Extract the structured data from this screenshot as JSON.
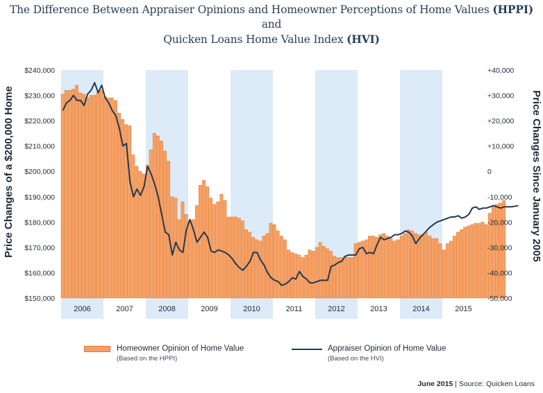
{
  "title": {
    "line1_prefix": "The Difference Between Appraiser Opinions and Homeowner Perceptions of Home Values",
    "line1_acronym": "(HPPI)",
    "line2": "and",
    "line3_prefix": "Quicken Loans Home Value Index",
    "line3_acronym": "(HVI)"
  },
  "legend": {
    "bar_label": "Homeowner Opinion of Home Value",
    "bar_sub": "(Based on the HPPI)",
    "line_label": "Appraiser Opinion of Home Value",
    "line_sub": "(Based on the HVI)"
  },
  "source": {
    "date": "June 2015",
    "separator": "|",
    "text": "Source: Quicken Loans"
  },
  "colors": {
    "bar": "#f7a062",
    "bar_edge": "#e07a35",
    "line": "#22384f",
    "band": "#dcebf7",
    "title": "#2a3f57"
  },
  "chart_data": {
    "type": "bar",
    "left_axis": {
      "label": "Price Changes of a $200,000 Home",
      "range": [
        150000,
        240000
      ],
      "ticks": [
        "$150,000",
        "$160,000",
        "$170,000",
        "$180,000",
        "$190,000",
        "$200,000",
        "$210,000",
        "$220,000",
        "$230,000",
        "$240,000"
      ]
    },
    "right_axis": {
      "label": "Price Changes Since January 2005",
      "range": [
        -50000,
        40000
      ],
      "ticks": [
        "-50,000",
        "-40,000",
        "-30,000",
        "-20,000",
        "-10,000",
        "0",
        "+10,000",
        "+20,000",
        "+30,000",
        "+40,000"
      ]
    },
    "years": [
      "2006",
      "2007",
      "2008",
      "2009",
      "2010",
      "2011",
      "2012",
      "2013",
      "2014",
      "2015"
    ],
    "shaded_years": [
      "2006",
      "2008",
      "2010",
      "2012",
      "2014"
    ],
    "series": [
      {
        "name": "Homeowner Opinion of Home Value",
        "kind": "bar",
        "axis": "left",
        "start": "2006-01",
        "values": [
          230500,
          232000,
          232000,
          232500,
          234000,
          231000,
          230500,
          229000,
          230000,
          230000,
          231000,
          232000,
          229500,
          229000,
          229000,
          228000,
          223000,
          220500,
          218500,
          218000,
          206500,
          202000,
          200000,
          199000,
          202500,
          208500,
          215000,
          214000,
          212000,
          208000,
          204000,
          190000,
          189500,
          181000,
          188000,
          183000,
          180500,
          181000,
          186500,
          194500,
          196500,
          194000,
          189500,
          187000,
          188000,
          191000,
          188500,
          182000,
          182000,
          182000,
          181500,
          180500,
          177000,
          176000,
          174000,
          173000,
          172500,
          174500,
          175500,
          179500,
          179000,
          176500,
          174500,
          173000,
          169000,
          168000,
          167500,
          167000,
          166000,
          167000,
          169000,
          168500,
          170000,
          172000,
          170500,
          169500,
          168500,
          166500,
          166000,
          166000,
          166500,
          166000,
          166000,
          171500,
          172000,
          172500,
          173000,
          174500,
          174500,
          174000,
          175000,
          175500,
          174500,
          173500,
          172500,
          173000,
          174500,
          175500,
          177000,
          176500,
          175500,
          175000,
          175000,
          176000,
          174500,
          173500,
          173500,
          171500,
          169000,
          171500,
          172500,
          174500,
          176000,
          177000,
          178000,
          178500,
          179000,
          179500,
          179500,
          180000,
          179000,
          183500,
          186500,
          187000,
          187500,
          188500
        ]
      },
      {
        "name": "Appraiser Opinion of Home Value",
        "kind": "line",
        "axis": "right",
        "start": "2006-01",
        "values": [
          24000,
          27000,
          28000,
          30000,
          28000,
          28000,
          26000,
          30500,
          32000,
          35000,
          31000,
          34000,
          29000,
          27000,
          24000,
          22000,
          17000,
          10000,
          11000,
          -4000,
          -10000,
          -7000,
          -9500,
          -6000,
          2000,
          -1000,
          -5000,
          -10000,
          -17000,
          -24000,
          -25000,
          -33000,
          -28000,
          -31000,
          -32000,
          -23000,
          -19000,
          -23000,
          -28000,
          -26000,
          -24000,
          -26000,
          -31500,
          -32000,
          -31000,
          -31500,
          -32000,
          -33000,
          -34500,
          -36500,
          -38000,
          -39000,
          -37500,
          -35500,
          -32000,
          -32000,
          -35000,
          -37000,
          -40000,
          -42000,
          -43000,
          -43500,
          -45000,
          -44500,
          -43500,
          -42000,
          -42500,
          -39500,
          -41500,
          -42500,
          -44000,
          -44000,
          -43500,
          -43000,
          -43000,
          -43000,
          -37500,
          -37000,
          -36000,
          -35500,
          -33500,
          -33000,
          -33000,
          -33000,
          -30500,
          -30000,
          -32500,
          -32000,
          -32500,
          -29000,
          -26000,
          -27000,
          -26500,
          -26000,
          -25000,
          -25000,
          -24500,
          -23500,
          -24000,
          -25500,
          -28500,
          -26500,
          -25000,
          -23500,
          -22000,
          -21000,
          -20000,
          -19500,
          -19000,
          -18500,
          -18000,
          -18000,
          -17500,
          -18500,
          -18000,
          -17000,
          -14500,
          -14000,
          -15000,
          -14500,
          -14500,
          -14000,
          -13500,
          -14000,
          -14500,
          -14000,
          -14000,
          -14000,
          -13800,
          -13500
        ]
      }
    ]
  }
}
